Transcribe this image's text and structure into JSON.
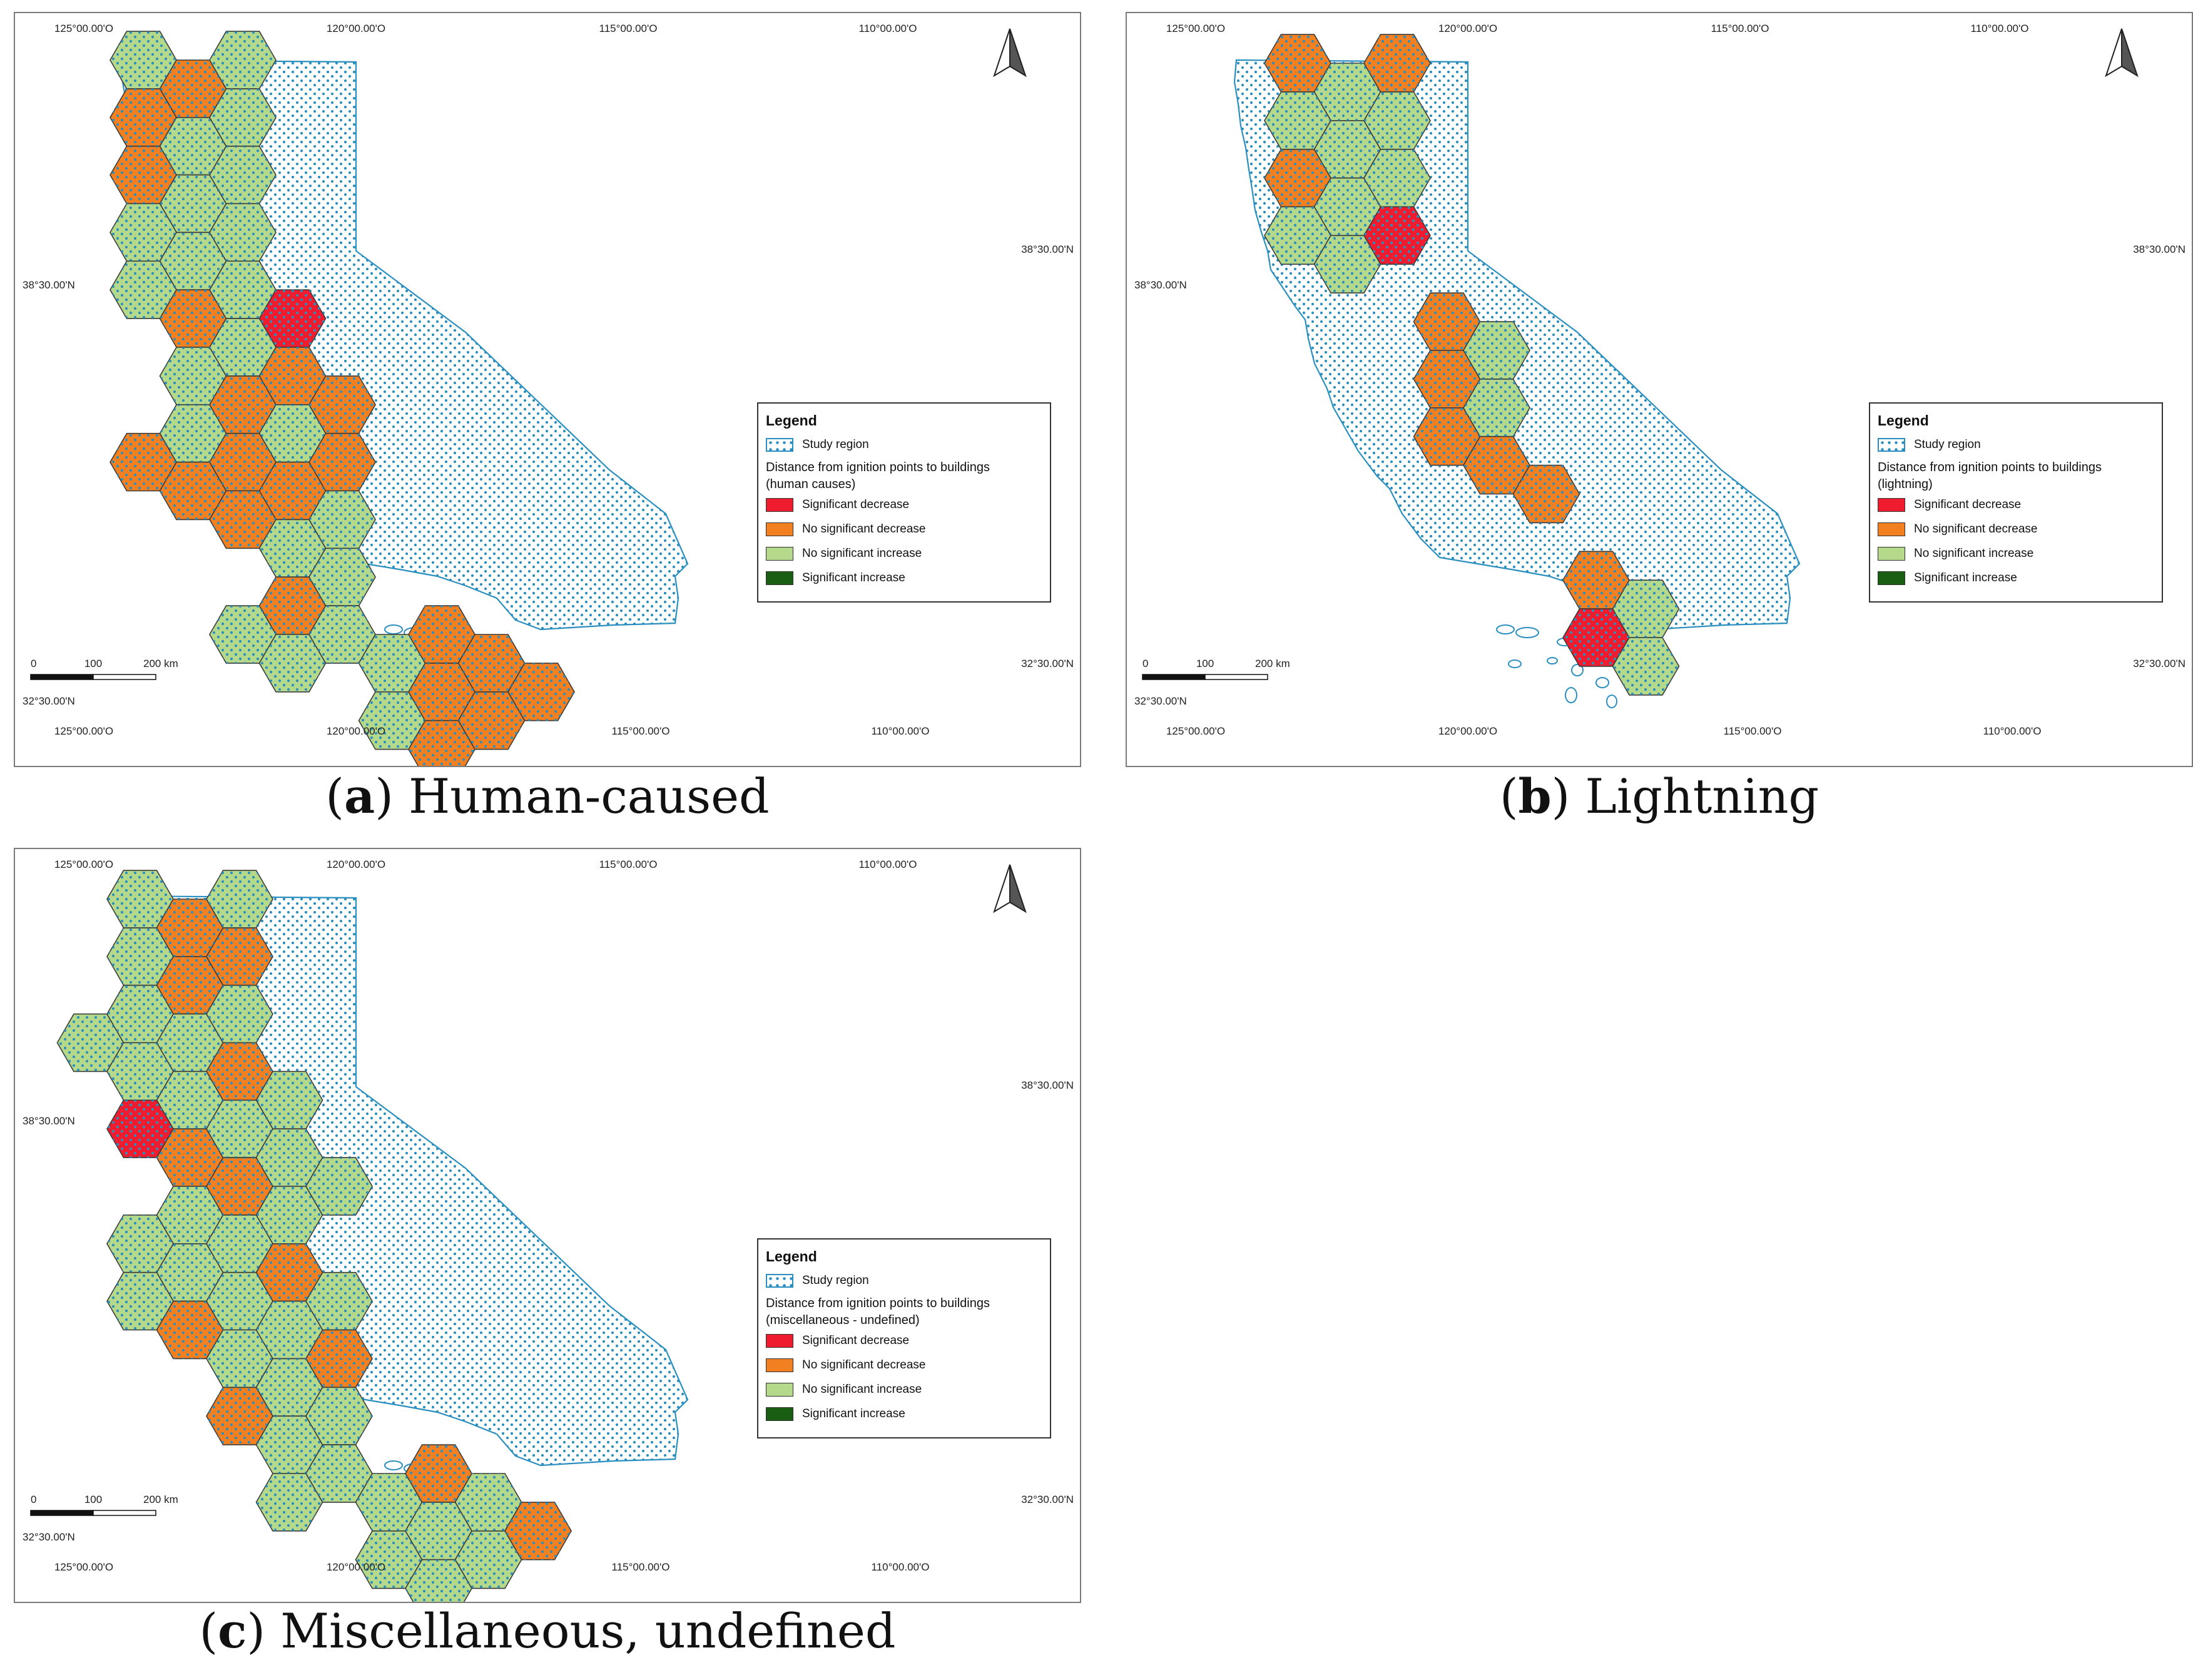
{
  "panels": [
    {
      "caption_letter": "a",
      "caption_text": "Human-caused",
      "legend_subtitle_line1": "Distance from ignition points to buildings",
      "legend_subtitle_line2": "(human causes)",
      "hexes": [
        {
          "col": 0,
          "row": 0,
          "cls": "ns_increase"
        },
        {
          "col": 1,
          "row": 0,
          "cls": "ns_decrease"
        },
        {
          "col": 2,
          "row": 0,
          "cls": "ns_increase"
        },
        {
          "col": 0,
          "row": 1,
          "cls": "ns_decrease"
        },
        {
          "col": 1,
          "row": 1,
          "cls": "ns_increase"
        },
        {
          "col": 2,
          "row": 1,
          "cls": "ns_increase"
        },
        {
          "col": 0,
          "row": 2,
          "cls": "ns_decrease"
        },
        {
          "col": 1,
          "row": 2,
          "cls": "ns_increase"
        },
        {
          "col": 2,
          "row": 2,
          "cls": "ns_increase"
        },
        {
          "col": 0,
          "row": 3,
          "cls": "ns_increase"
        },
        {
          "col": 1,
          "row": 3,
          "cls": "ns_increase"
        },
        {
          "col": 2,
          "row": 3,
          "cls": "ns_increase"
        },
        {
          "col": 0,
          "row": 4,
          "cls": "ns_increase"
        },
        {
          "col": 1,
          "row": 4,
          "cls": "ns_decrease"
        },
        {
          "col": 2,
          "row": 4,
          "cls": "ns_increase"
        },
        {
          "col": 3,
          "row": 4,
          "cls": "sig_decrease"
        },
        {
          "col": 1,
          "row": 5,
          "cls": "ns_increase"
        },
        {
          "col": 2,
          "row": 5,
          "cls": "ns_increase"
        },
        {
          "col": 3,
          "row": 5,
          "cls": "ns_decrease"
        },
        {
          "col": 1,
          "row": 6,
          "cls": "ns_increase"
        },
        {
          "col": 2,
          "row": 6,
          "cls": "ns_decrease"
        },
        {
          "col": 3,
          "row": 6,
          "cls": "ns_increase"
        },
        {
          "col": 4,
          "row": 6,
          "cls": "ns_decrease"
        },
        {
          "col": 0,
          "row": 7,
          "cls": "ns_decrease"
        },
        {
          "col": 1,
          "row": 7,
          "cls": "ns_decrease"
        },
        {
          "col": 2,
          "row": 7,
          "cls": "ns_decrease"
        },
        {
          "col": 3,
          "row": 7,
          "cls": "ns_decrease"
        },
        {
          "col": 4,
          "row": 7,
          "cls": "ns_decrease"
        },
        {
          "col": 2,
          "row": 8,
          "cls": "ns_decrease"
        },
        {
          "col": 3,
          "row": 8,
          "cls": "ns_increase"
        },
        {
          "col": 4,
          "row": 8,
          "cls": "ns_increase"
        },
        {
          "col": 3,
          "row": 9,
          "cls": "ns_decrease"
        },
        {
          "col": 4,
          "row": 9,
          "cls": "ns_increase"
        },
        {
          "col": 2,
          "row": 10,
          "cls": "ns_increase"
        },
        {
          "col": 3,
          "row": 10,
          "cls": "ns_increase"
        },
        {
          "col": 4,
          "row": 10,
          "cls": "ns_increase"
        },
        {
          "col": 5,
          "row": 10,
          "cls": "ns_increase"
        },
        {
          "col": 6,
          "row": 10,
          "cls": "ns_decrease"
        },
        {
          "col": 7,
          "row": 10,
          "cls": "ns_decrease"
        },
        {
          "col": 5,
          "row": 11,
          "cls": "ns_increase"
        },
        {
          "col": 6,
          "row": 11,
          "cls": "ns_decrease"
        },
        {
          "col": 7,
          "row": 11,
          "cls": "ns_decrease"
        },
        {
          "col": 8,
          "row": 11,
          "cls": "ns_decrease"
        },
        {
          "col": 6,
          "row": 12,
          "cls": "ns_decrease"
        }
      ]
    },
    {
      "caption_letter": "b",
      "caption_text": "Lightning",
      "legend_subtitle_line1": "Distance from ignition points to buildings",
      "legend_subtitle_line2": "(lightning)",
      "hexes": [
        {
          "col": 0,
          "row": 0,
          "cls": "ns_decrease"
        },
        {
          "col": 1,
          "row": 0,
          "cls": "ns_increase"
        },
        {
          "col": 2,
          "row": 0,
          "cls": "ns_decrease"
        },
        {
          "col": 0,
          "row": 1,
          "cls": "ns_increase"
        },
        {
          "col": 1,
          "row": 1,
          "cls": "ns_increase"
        },
        {
          "col": 2,
          "row": 1,
          "cls": "ns_increase"
        },
        {
          "col": 0,
          "row": 2,
          "cls": "ns_decrease"
        },
        {
          "col": 1,
          "row": 2,
          "cls": "ns_increase"
        },
        {
          "col": 2,
          "row": 2,
          "cls": "ns_increase"
        },
        {
          "col": 0,
          "row": 3,
          "cls": "ns_increase"
        },
        {
          "col": 1,
          "row": 3,
          "cls": "ns_increase"
        },
        {
          "col": 2,
          "row": 3,
          "cls": "sig_decrease"
        },
        {
          "col": 3,
          "row": 4,
          "cls": "ns_decrease"
        },
        {
          "col": 3,
          "row": 5,
          "cls": "ns_decrease"
        },
        {
          "col": 4,
          "row": 5,
          "cls": "ns_increase"
        },
        {
          "col": 3,
          "row": 6,
          "cls": "ns_decrease"
        },
        {
          "col": 4,
          "row": 6,
          "cls": "ns_increase"
        },
        {
          "col": 4,
          "row": 7,
          "cls": "ns_decrease"
        },
        {
          "col": 5,
          "row": 7,
          "cls": "ns_decrease"
        },
        {
          "col": 6,
          "row": 9,
          "cls": "ns_decrease"
        },
        {
          "col": 7,
          "row": 9,
          "cls": "ns_increase"
        },
        {
          "col": 6,
          "row": 10,
          "cls": "sig_decrease"
        },
        {
          "col": 7,
          "row": 10,
          "cls": "ns_increase"
        }
      ]
    },
    {
      "caption_letter": "c",
      "caption_text": "Miscellaneous, undefined",
      "legend_subtitle_line1": "Distance from ignition points to buildings",
      "legend_subtitle_line2": "(miscellaneous - undefined)",
      "hexes": [
        {
          "col": 0,
          "row": 0,
          "cls": "ns_increase"
        },
        {
          "col": 1,
          "row": 0,
          "cls": "ns_decrease"
        },
        {
          "col": 2,
          "row": 0,
          "cls": "ns_increase"
        },
        {
          "col": 0,
          "row": 1,
          "cls": "ns_increase"
        },
        {
          "col": 1,
          "row": 1,
          "cls": "ns_decrease"
        },
        {
          "col": 2,
          "row": 1,
          "cls": "ns_decrease"
        },
        {
          "col": -1,
          "row": 2,
          "cls": "ns_increase"
        },
        {
          "col": 0,
          "row": 2,
          "cls": "ns_increase"
        },
        {
          "col": 1,
          "row": 2,
          "cls": "ns_increase"
        },
        {
          "col": 2,
          "row": 2,
          "cls": "ns_increase"
        },
        {
          "col": 0,
          "row": 3,
          "cls": "ns_increase"
        },
        {
          "col": 1,
          "row": 3,
          "cls": "ns_increase"
        },
        {
          "col": 2,
          "row": 3,
          "cls": "ns_decrease"
        },
        {
          "col": 3,
          "row": 3,
          "cls": "ns_increase"
        },
        {
          "col": 0,
          "row": 4,
          "cls": "sig_decrease"
        },
        {
          "col": 1,
          "row": 4,
          "cls": "ns_decrease"
        },
        {
          "col": 2,
          "row": 4,
          "cls": "ns_increase"
        },
        {
          "col": 3,
          "row": 4,
          "cls": "ns_increase"
        },
        {
          "col": 1,
          "row": 5,
          "cls": "ns_increase"
        },
        {
          "col": 2,
          "row": 5,
          "cls": "ns_decrease"
        },
        {
          "col": 3,
          "row": 5,
          "cls": "ns_increase"
        },
        {
          "col": 4,
          "row": 5,
          "cls": "ns_increase"
        },
        {
          "col": 0,
          "row": 6,
          "cls": "ns_increase"
        },
        {
          "col": 1,
          "row": 6,
          "cls": "ns_increase"
        },
        {
          "col": 2,
          "row": 6,
          "cls": "ns_increase"
        },
        {
          "col": 3,
          "row": 6,
          "cls": "ns_decrease"
        },
        {
          "col": 0,
          "row": 7,
          "cls": "ns_increase"
        },
        {
          "col": 1,
          "row": 7,
          "cls": "ns_decrease"
        },
        {
          "col": 2,
          "row": 7,
          "cls": "ns_increase"
        },
        {
          "col": 3,
          "row": 7,
          "cls": "ns_increase"
        },
        {
          "col": 4,
          "row": 7,
          "cls": "ns_increase"
        },
        {
          "col": 2,
          "row": 8,
          "cls": "ns_increase"
        },
        {
          "col": 3,
          "row": 8,
          "cls": "ns_increase"
        },
        {
          "col": 4,
          "row": 8,
          "cls": "ns_decrease"
        },
        {
          "col": 2,
          "row": 9,
          "cls": "ns_decrease"
        },
        {
          "col": 3,
          "row": 9,
          "cls": "ns_increase"
        },
        {
          "col": 4,
          "row": 9,
          "cls": "ns_increase"
        },
        {
          "col": 3,
          "row": 10,
          "cls": "ns_increase"
        },
        {
          "col": 4,
          "row": 10,
          "cls": "ns_increase"
        },
        {
          "col": 5,
          "row": 10,
          "cls": "ns_increase"
        },
        {
          "col": 6,
          "row": 10,
          "cls": "ns_decrease"
        },
        {
          "col": 7,
          "row": 10,
          "cls": "ns_increase"
        },
        {
          "col": 5,
          "row": 11,
          "cls": "ns_increase"
        },
        {
          "col": 6,
          "row": 11,
          "cls": "ns_increase"
        },
        {
          "col": 7,
          "row": 11,
          "cls": "ns_increase"
        },
        {
          "col": 8,
          "row": 11,
          "cls": "ns_decrease"
        },
        {
          "col": 6,
          "row": 12,
          "cls": "ns_increase"
        }
      ]
    }
  ],
  "legend": {
    "title": "Legend",
    "study_region": "Study region",
    "classes": [
      {
        "key": "sig_decrease",
        "label": "Significant decrease",
        "color": "#ee1c2e"
      },
      {
        "key": "ns_decrease",
        "label": "No significant decrease",
        "color": "#f28020"
      },
      {
        "key": "ns_increase",
        "label": "No significant increase",
        "color": "#b5d98a"
      },
      {
        "key": "sig_increase",
        "label": "Significant increase",
        "color": "#1a5e14"
      }
    ]
  },
  "coords": {
    "top_lon": [
      "125°00.00'O",
      "120°00.00'O",
      "115°00.00'O",
      "110°00.00'O"
    ],
    "bottom_lon": [
      "125°00.00'O",
      "120°00.00'O",
      "115°00.00'O",
      "110°00.00'O"
    ],
    "left_lat": [
      "38°30.00'N",
      "32°30.00'N"
    ],
    "right_lat": [
      "38°30.00'N",
      "32°30.00'N"
    ]
  },
  "scale_bar": {
    "l0": "0",
    "l1": "100",
    "l2": "200 km"
  },
  "colors": {
    "study_outline": "#2a8fbf",
    "dots": "#2a8fbf",
    "hex_stroke": "#3a3a3a"
  }
}
